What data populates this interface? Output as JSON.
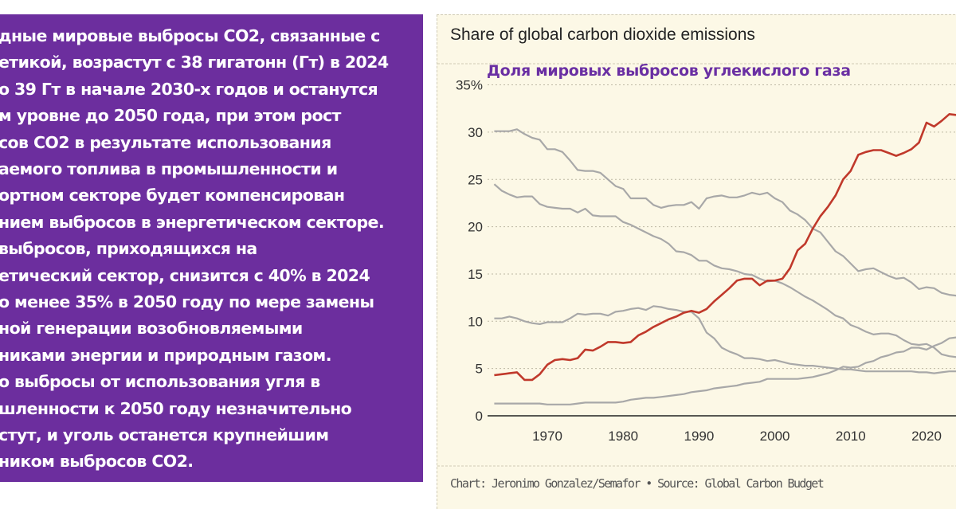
{
  "text_panel": {
    "lines": [
      "дные мировые выбросы CO2, связанные с",
      "етикой, возрастут с 38 гигатонн (Гт) в 2024",
      "о 39 Гт в начале 2030-х годов и останутся",
      "м уровне до 2050 года, при этом рост",
      "сов CO2 в результате использования",
      "аемого топлива в промышленности и",
      "ортном секторе будет компенсирован",
      "нием выбросов в энергетическом секторе.",
      "выбросов, приходящихся на",
      "етический сектор, снизится с 40% в 2024",
      "о менее 35% в 2050 году по мере замены",
      "ной генерации возобновляемыми",
      "никами энергии и природным газом.",
      "о выбросы от использования угля в",
      "шленности к 2050 году незначительно",
      "стут, и уголь останется крупнейшим",
      "ником выбросов CO2."
    ],
    "background": "#6c2e9e"
  },
  "chart_data": {
    "type": "line",
    "title": "Share of global carbon dioxide emissions",
    "subtitle": "Доля мировых выбросов углекислого газа",
    "footer": "Chart: Jeronimo Gonzalez/Semafor • Source: Global Carbon Budget",
    "x_start": 1963,
    "x_end": 2024,
    "xlim": [
      1963,
      2024
    ],
    "ylim": [
      0,
      35
    ],
    "x_ticks": [
      "1970",
      "1980",
      "1990",
      "2000",
      "2010",
      "2020"
    ],
    "y_ticks": [
      "0",
      "5",
      "10",
      "15",
      "20",
      "25",
      "30",
      "35%"
    ],
    "grid": "horizontal dotted",
    "series": [
      {
        "color": "#c0392b",
        "highlight": true,
        "values": [
          4.3,
          4.4,
          4.5,
          4.6,
          3.8,
          3.8,
          4.4,
          5.4,
          5.9,
          6.0,
          5.9,
          6.1,
          7.0,
          6.9,
          7.3,
          7.8,
          7.8,
          7.7,
          7.8,
          8.5,
          8.9,
          9.4,
          9.8,
          10.2,
          10.5,
          10.9,
          11.1,
          10.9,
          11.3,
          12.1,
          12.8,
          13.5,
          14.3,
          14.5,
          14.5,
          13.8,
          14.3,
          14.3,
          14.5,
          15.6,
          17.5,
          18.2,
          19.8,
          21.1,
          22.1,
          23.3,
          25.0,
          25.9,
          27.6,
          27.9,
          28.1,
          28.1,
          27.8,
          27.5,
          27.8,
          28.2,
          28.9,
          31.0,
          30.6,
          31.2,
          31.9,
          31.8
        ]
      },
      {
        "color": "#a8a8a8",
        "values": [
          30.1,
          30.1,
          30.1,
          30.3,
          29.8,
          29.4,
          29.2,
          28.2,
          28.2,
          27.9,
          27.0,
          26.0,
          25.9,
          25.9,
          25.7,
          25.0,
          24.3,
          24.0,
          23.0,
          23.0,
          23.0,
          22.3,
          22.0,
          22.2,
          22.3,
          22.3,
          22.6,
          21.9,
          23.0,
          23.2,
          23.3,
          23.1,
          23.1,
          23.3,
          23.6,
          23.4,
          23.6,
          23.0,
          22.6,
          21.7,
          21.3,
          20.7,
          19.8,
          19.4,
          18.4,
          17.4,
          16.9,
          16.1,
          15.3,
          15.5,
          15.6,
          15.2,
          14.8,
          14.5,
          14.6,
          14.1,
          13.4,
          13.6,
          13.5,
          13.0,
          12.8,
          12.7
        ]
      },
      {
        "color": "#a8a8a8",
        "values": [
          24.5,
          23.8,
          23.4,
          23.1,
          23.2,
          23.2,
          22.4,
          22.1,
          22.0,
          21.9,
          21.9,
          21.5,
          21.9,
          21.2,
          21.1,
          21.1,
          21.1,
          20.5,
          20.2,
          19.8,
          19.4,
          19.0,
          18.7,
          18.2,
          17.4,
          17.3,
          17.0,
          16.4,
          16.4,
          15.9,
          15.6,
          15.5,
          15.3,
          15.0,
          14.9,
          14.5,
          14.2,
          14.3,
          14.0,
          13.6,
          13.1,
          12.6,
          12.2,
          11.7,
          11.2,
          10.6,
          10.3,
          9.6,
          9.3,
          8.9,
          8.6,
          8.7,
          8.7,
          8.5,
          8.0,
          7.6,
          7.5,
          7.6,
          7.2,
          6.5,
          6.3,
          6.2
        ]
      },
      {
        "color": "#a8a8a8",
        "values": [
          10.3,
          10.3,
          10.5,
          10.3,
          10.0,
          9.8,
          9.7,
          9.9,
          9.9,
          9.9,
          10.3,
          10.8,
          10.7,
          10.8,
          10.8,
          10.6,
          11.0,
          11.1,
          11.3,
          11.4,
          11.2,
          11.6,
          11.5,
          11.3,
          11.2,
          11.0,
          11.0,
          10.3,
          8.8,
          8.2,
          7.2,
          6.8,
          6.5,
          6.1,
          6.1,
          6.0,
          5.8,
          5.9,
          5.7,
          5.5,
          5.4,
          5.3,
          5.3,
          5.2,
          5.1,
          5.0,
          4.9,
          4.9,
          4.8,
          4.7,
          4.7,
          4.7,
          4.7,
          4.7,
          4.7,
          4.7,
          4.6,
          4.6,
          4.5,
          4.6,
          4.7,
          4.7
        ]
      },
      {
        "color": "#a8a8a8",
        "values": [
          1.3,
          1.3,
          1.3,
          1.3,
          1.3,
          1.3,
          1.3,
          1.2,
          1.2,
          1.2,
          1.2,
          1.3,
          1.4,
          1.4,
          1.4,
          1.4,
          1.4,
          1.5,
          1.7,
          1.8,
          1.9,
          1.9,
          2.0,
          2.1,
          2.2,
          2.3,
          2.5,
          2.6,
          2.7,
          2.9,
          3.0,
          3.1,
          3.2,
          3.4,
          3.5,
          3.6,
          3.9,
          3.9,
          3.9,
          3.9,
          3.9,
          4.0,
          4.1,
          4.3,
          4.5,
          4.8,
          5.2,
          5.1,
          5.2,
          5.6,
          5.8,
          6.2,
          6.4,
          6.7,
          6.8,
          7.2,
          7.2,
          7.0,
          7.4,
          7.7,
          8.2,
          8.3
        ]
      }
    ]
  }
}
